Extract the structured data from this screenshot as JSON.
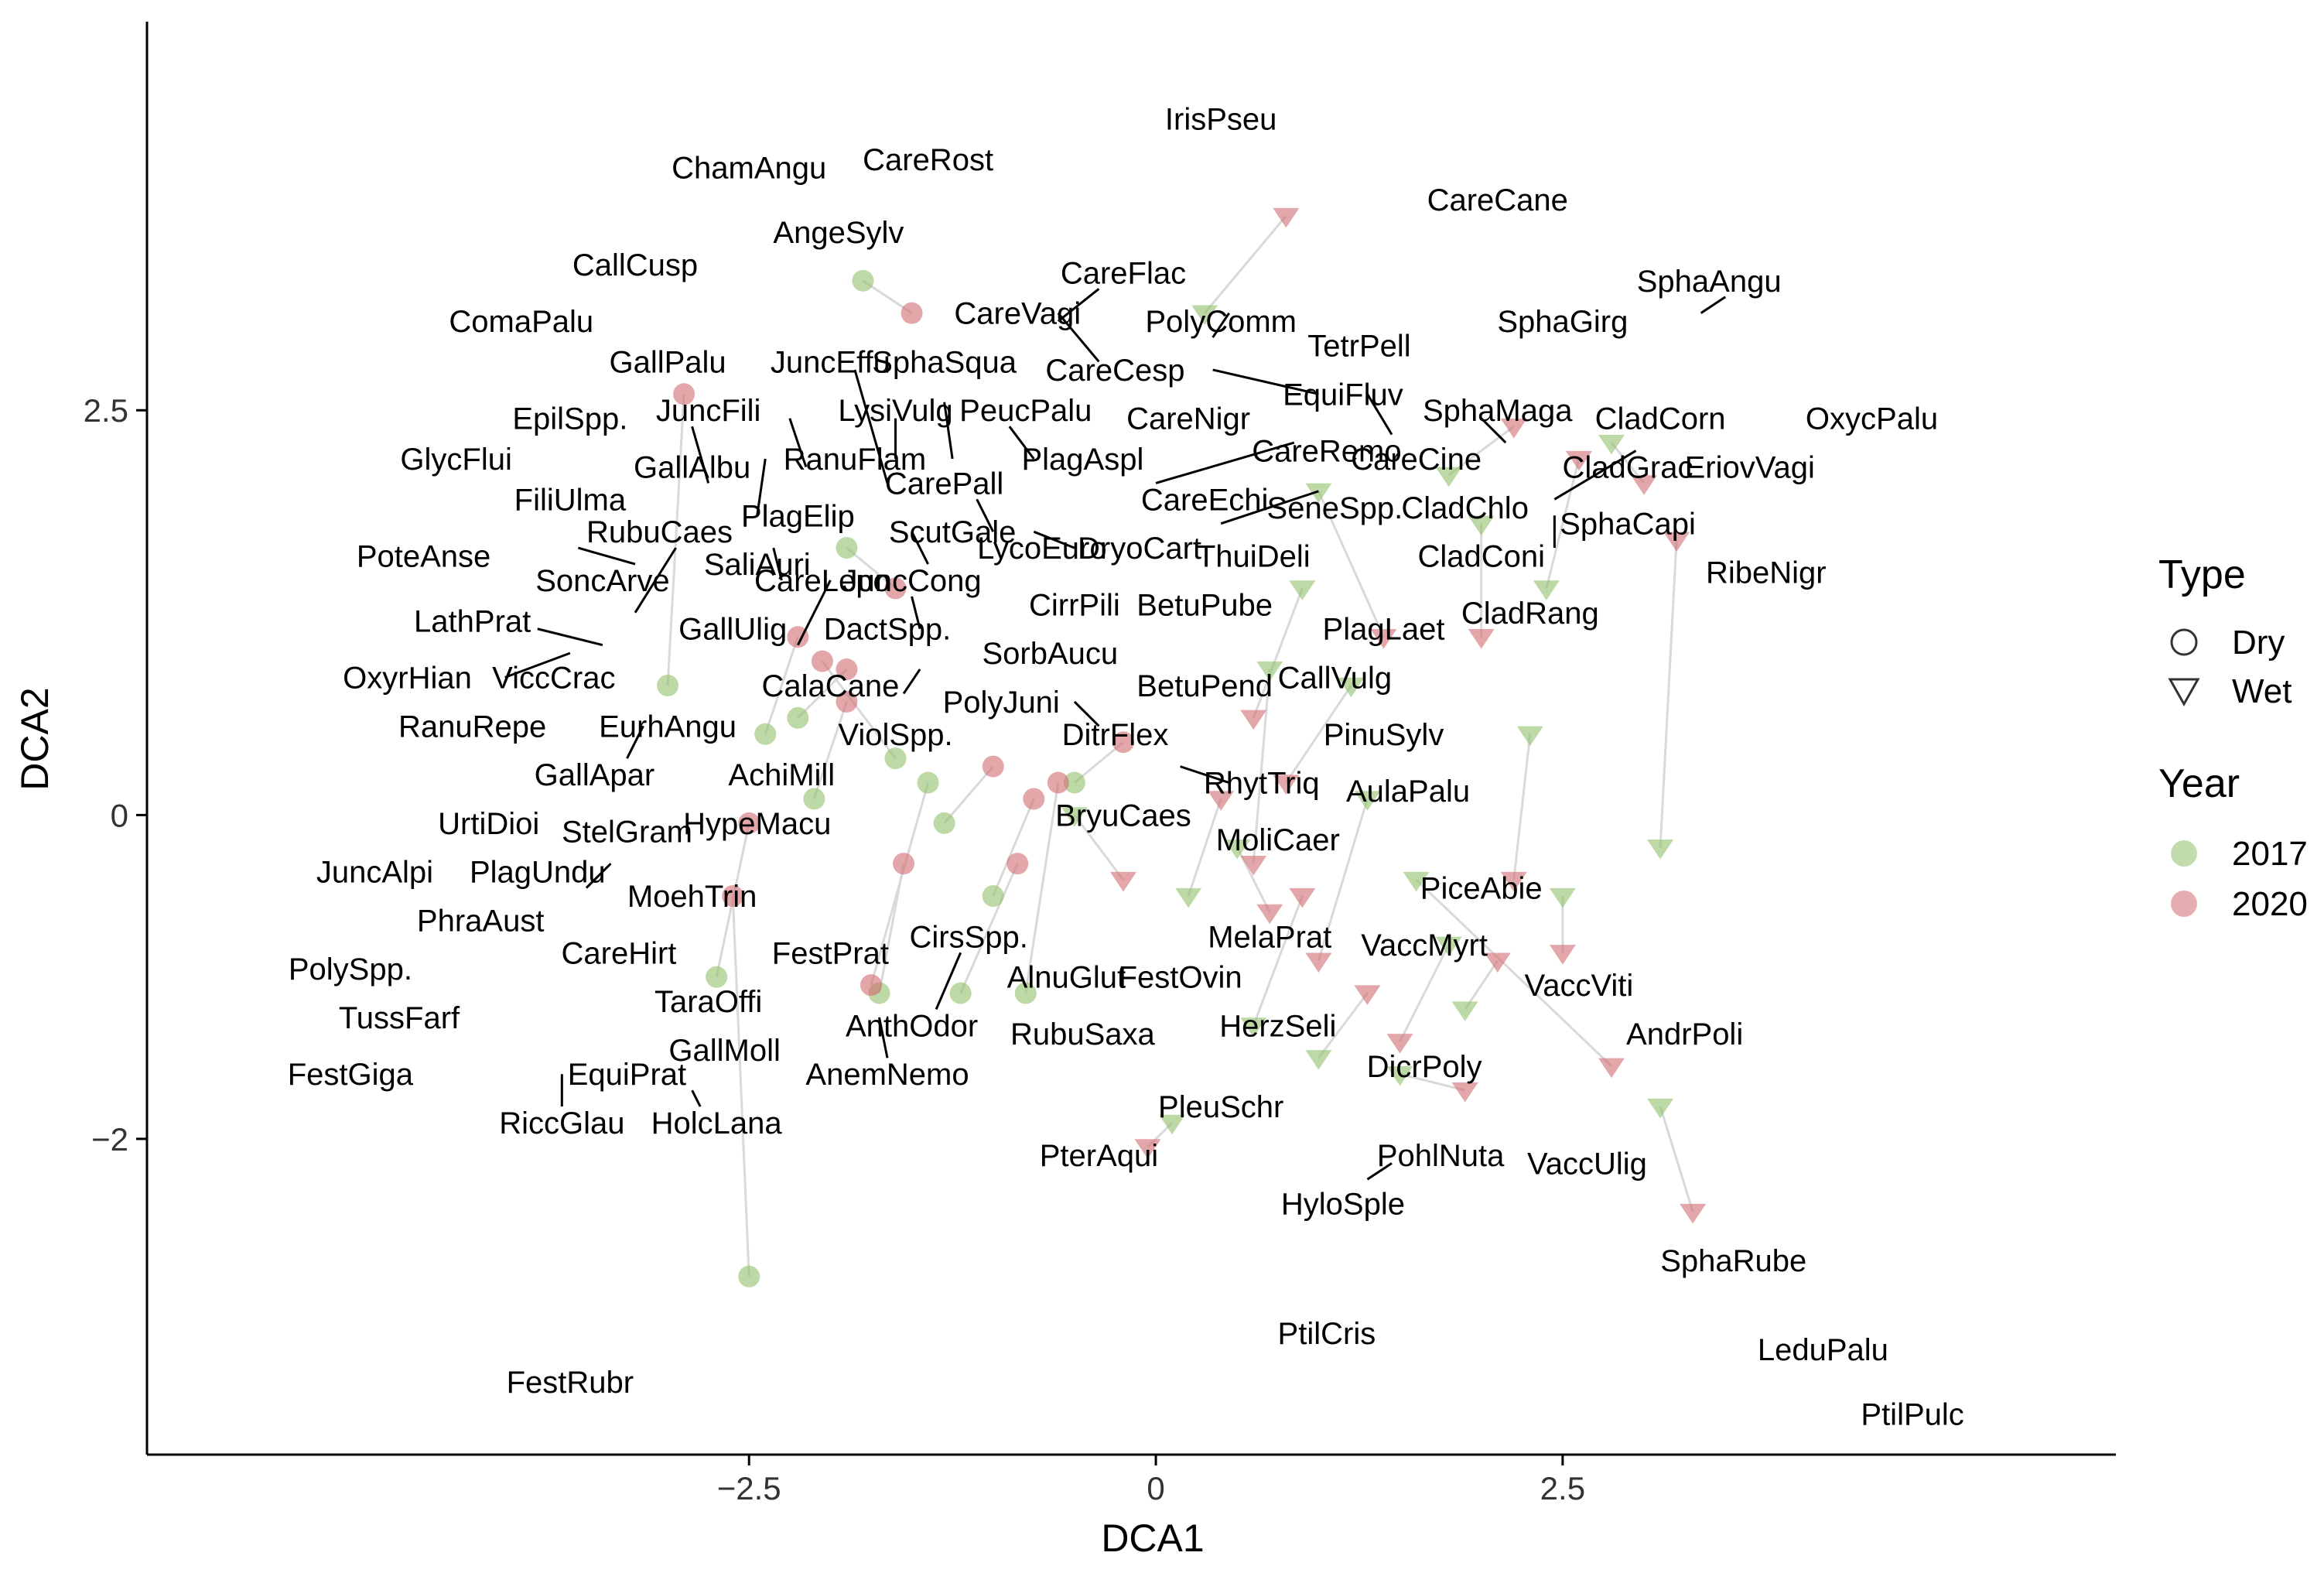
{
  "chart_data": {
    "type": "scatter",
    "xlabel": "DCA1",
    "ylabel": "DCA2",
    "xlim": [
      -6.2,
      5.9
    ],
    "ylim": [
      -3.95,
      4.9
    ],
    "x_ticks": [
      -2.5,
      0,
      2.5
    ],
    "x_tick_labels": [
      "−2.5",
      "0",
      "2.5"
    ],
    "y_ticks": [
      -2,
      0,
      2.5
    ],
    "y_tick_labels": [
      "−2",
      "0",
      "2.5"
    ],
    "grid": false,
    "legend": {
      "placement": "right",
      "type_title": "Type",
      "types": [
        {
          "label": "Dry",
          "shape": "circle"
        },
        {
          "label": "Wet",
          "shape": "triangle-down"
        }
      ],
      "year_title": "Year",
      "years": [
        {
          "label": "2017",
          "color": "#8fbf6a"
        },
        {
          "label": "2020",
          "color": "#d06a6f"
        }
      ]
    },
    "colors": {
      "y2017": "#8fbf6a",
      "y2020": "#d06a6f",
      "connector": "#d9d9d9"
    },
    "sites": [
      {
        "type": "Dry",
        "x2017": -1.8,
        "y2017": 3.3,
        "x2020": -1.5,
        "y2020": 3.1
      },
      {
        "type": "Dry",
        "x2017": -3.0,
        "y2017": 0.8,
        "x2020": -2.9,
        "y2020": 2.6
      },
      {
        "type": "Dry",
        "x2017": -2.5,
        "y2017": -2.85,
        "x2020": -2.6,
        "y2020": -0.5
      },
      {
        "type": "Dry",
        "x2017": -2.4,
        "y2017": 0.5,
        "x2020": -2.2,
        "y2020": 1.1
      },
      {
        "type": "Dry",
        "x2017": -2.1,
        "y2017": 0.1,
        "x2020": -1.9,
        "y2020": 0.7
      },
      {
        "type": "Dry",
        "x2017": -1.7,
        "y2017": -1.1,
        "x2020": -1.55,
        "y2020": -0.3
      },
      {
        "type": "Dry",
        "x2017": -1.3,
        "y2017": -0.05,
        "x2020": -1.0,
        "y2020": 0.3
      },
      {
        "type": "Dry",
        "x2017": -1.6,
        "y2017": 0.35,
        "x2020": -2.05,
        "y2020": 0.95
      },
      {
        "type": "Dry",
        "x2017": -1.2,
        "y2017": -1.1,
        "x2020": -0.85,
        "y2020": -0.3
      },
      {
        "type": "Dry",
        "x2017": -1.9,
        "y2017": 1.65,
        "x2020": -1.6,
        "y2020": 1.4
      },
      {
        "type": "Dry",
        "x2017": -2.7,
        "y2017": -1.0,
        "x2020": -2.5,
        "y2020": -0.05
      },
      {
        "type": "Dry",
        "x2017": -0.5,
        "y2017": 0.2,
        "x2020": -0.2,
        "y2020": 0.45
      },
      {
        "type": "Dry",
        "x2017": -1.4,
        "y2017": 0.2,
        "x2020": -1.75,
        "y2020": -1.05
      },
      {
        "type": "Dry",
        "x2017": -1.0,
        "y2017": -0.5,
        "x2020": -0.75,
        "y2020": 0.1
      },
      {
        "type": "Dry",
        "x2017": -2.2,
        "y2017": 0.6,
        "x2020": -1.9,
        "y2020": 0.9
      },
      {
        "type": "Dry",
        "x2017": -0.8,
        "y2017": -1.1,
        "x2020": -0.6,
        "y2020": 0.2
      },
      {
        "type": "Wet",
        "x2017": 0.3,
        "y2017": 3.1,
        "x2020": 0.8,
        "y2020": 3.7
      },
      {
        "type": "Wet",
        "x2017": 1.8,
        "y2017": 2.1,
        "x2020": 2.2,
        "y2020": 2.4
      },
      {
        "type": "Wet",
        "x2017": 3.1,
        "y2017": -0.2,
        "x2020": 3.2,
        "y2020": 1.7
      },
      {
        "type": "Wet",
        "x2017": 3.1,
        "y2017": -1.8,
        "x2020": 3.3,
        "y2020": -2.45
      },
      {
        "type": "Wet",
        "x2017": 2.0,
        "y2017": 1.8,
        "x2020": 2.0,
        "y2020": 1.1
      },
      {
        "type": "Wet",
        "x2017": 2.5,
        "y2017": -0.5,
        "x2020": 2.5,
        "y2020": -0.85
      },
      {
        "type": "Wet",
        "x2017": 1.6,
        "y2017": -0.4,
        "x2020": 2.8,
        "y2020": -1.55
      },
      {
        "type": "Wet",
        "x2017": 0.6,
        "y2017": -1.3,
        "x2020": 0.9,
        "y2020": -0.5
      },
      {
        "type": "Wet",
        "x2017": 1.2,
        "y2017": 0.8,
        "x2020": 0.8,
        "y2020": 0.2
      },
      {
        "type": "Wet",
        "x2017": 0.1,
        "y2017": -1.9,
        "x2020": -0.05,
        "y2020": -2.05
      },
      {
        "type": "Wet",
        "x2017": 1.0,
        "y2017": 2.0,
        "x2020": 1.4,
        "y2020": 1.1
      },
      {
        "type": "Wet",
        "x2017": 0.5,
        "y2017": -0.2,
        "x2020": 0.7,
        "y2020": -0.6
      },
      {
        "type": "Wet",
        "x2017": 1.8,
        "y2017": -0.8,
        "x2020": 1.5,
        "y2020": -1.4
      },
      {
        "type": "Wet",
        "x2017": 2.3,
        "y2017": 0.5,
        "x2020": 2.2,
        "y2020": -0.4
      },
      {
        "type": "Wet",
        "x2017": 1.3,
        "y2017": 0.1,
        "x2020": 1.0,
        "y2020": -0.9
      },
      {
        "type": "Wet",
        "x2017": 0.9,
        "y2017": 1.4,
        "x2020": 0.6,
        "y2020": 0.6
      },
      {
        "type": "Wet",
        "x2017": 2.8,
        "y2017": 2.3,
        "x2020": 3.0,
        "y2020": 2.05
      },
      {
        "type": "Wet",
        "x2017": 0.2,
        "y2017": -0.5,
        "x2020": 0.4,
        "y2020": 0.1
      },
      {
        "type": "Wet",
        "x2017": 1.5,
        "y2017": -1.6,
        "x2020": 1.9,
        "y2020": -1.7
      },
      {
        "type": "Wet",
        "x2017": 2.4,
        "y2017": 1.4,
        "x2020": 2.6,
        "y2020": 2.2
      },
      {
        "type": "Wet",
        "x2017": 1.0,
        "y2017": -1.5,
        "x2020": 1.3,
        "y2020": -1.1
      },
      {
        "type": "Wet",
        "x2017": 0.7,
        "y2017": 0.9,
        "x2020": 0.6,
        "y2020": -0.3
      },
      {
        "type": "Wet",
        "x2017": 1.9,
        "y2017": -1.2,
        "x2020": 2.1,
        "y2020": -0.9
      },
      {
        "type": "Wet",
        "x2017": -0.5,
        "y2017": 0.0,
        "x2020": -0.2,
        "y2020": -0.4
      }
    ],
    "species": [
      {
        "label": "IrisPseu",
        "x": 0.4,
        "y": 4.3
      },
      {
        "label": "CareRost",
        "x": -1.4,
        "y": 4.05
      },
      {
        "label": "ChamAngu",
        "x": -2.5,
        "y": 4.0
      },
      {
        "label": "CareCane",
        "x": 2.1,
        "y": 3.8
      },
      {
        "label": "AngeSylv",
        "x": -1.95,
        "y": 3.6
      },
      {
        "label": "CallCusp",
        "x": -3.2,
        "y": 3.4
      },
      {
        "label": "CareFlac",
        "x": -0.2,
        "y": 3.35
      },
      {
        "label": "SphaAngu",
        "x": 3.4,
        "y": 3.3
      },
      {
        "label": "CareVagi",
        "x": -0.85,
        "y": 3.1
      },
      {
        "label": "ComaPalu",
        "x": -3.9,
        "y": 3.05
      },
      {
        "label": "PolyComm",
        "x": 0.4,
        "y": 3.05
      },
      {
        "label": "SphaGirg",
        "x": 2.5,
        "y": 3.05
      },
      {
        "label": "TetrPell",
        "x": 1.25,
        "y": 2.9
      },
      {
        "label": "GallPalu",
        "x": -3.0,
        "y": 2.8
      },
      {
        "label": "JuncEffu",
        "x": -2.0,
        "y": 2.8
      },
      {
        "label": "SphaSqua",
        "x": -1.3,
        "y": 2.8
      },
      {
        "label": "CareCesp",
        "x": -0.25,
        "y": 2.75
      },
      {
        "label": "EquiFluv",
        "x": 1.15,
        "y": 2.6
      },
      {
        "label": "JuncFili",
        "x": -2.75,
        "y": 2.5
      },
      {
        "label": "EpilSpp.",
        "x": -3.6,
        "y": 2.45
      },
      {
        "label": "LysiVulg",
        "x": -1.6,
        "y": 2.5
      },
      {
        "label": "PeucPalu",
        "x": -0.8,
        "y": 2.5
      },
      {
        "label": "CareNigr",
        "x": 0.2,
        "y": 2.45
      },
      {
        "label": "SphaMaga",
        "x": 2.1,
        "y": 2.5
      },
      {
        "label": "CladCorn",
        "x": 3.1,
        "y": 2.45
      },
      {
        "label": "OxycPalu",
        "x": 4.4,
        "y": 2.45
      },
      {
        "label": "GlycFlui",
        "x": -4.3,
        "y": 2.2
      },
      {
        "label": "GallAlbu",
        "x": -2.85,
        "y": 2.15
      },
      {
        "label": "RanuFlam",
        "x": -1.85,
        "y": 2.2
      },
      {
        "label": "PlagAspl",
        "x": -0.45,
        "y": 2.2
      },
      {
        "label": "CareRemo",
        "x": 1.05,
        "y": 2.25
      },
      {
        "label": "CareCine",
        "x": 1.6,
        "y": 2.2
      },
      {
        "label": "CladGrac",
        "x": 2.9,
        "y": 2.15
      },
      {
        "label": "EriovVagi",
        "x": 3.65,
        "y": 2.15
      },
      {
        "label": "FiliUlma",
        "x": -3.6,
        "y": 1.95
      },
      {
        "label": "CarePall",
        "x": -1.3,
        "y": 2.05
      },
      {
        "label": "CareEchi",
        "x": 0.3,
        "y": 1.95
      },
      {
        "label": "SeneSpp.",
        "x": 1.1,
        "y": 1.9
      },
      {
        "label": "CladChlo",
        "x": 1.9,
        "y": 1.9
      },
      {
        "label": "PlagElip",
        "x": -2.2,
        "y": 1.85
      },
      {
        "label": "SphaCapi",
        "x": 2.9,
        "y": 1.8
      },
      {
        "label": "RubuCaes",
        "x": -3.05,
        "y": 1.75
      },
      {
        "label": "ScutGale",
        "x": -1.25,
        "y": 1.75
      },
      {
        "label": "PoteAnse",
        "x": -4.5,
        "y": 1.6
      },
      {
        "label": "SaliAuri",
        "x": -2.45,
        "y": 1.55
      },
      {
        "label": "LycoEuro",
        "x": -0.7,
        "y": 1.65
      },
      {
        "label": "DryoCart",
        "x": -0.1,
        "y": 1.65
      },
      {
        "label": "ThuiDeli",
        "x": 0.6,
        "y": 1.6
      },
      {
        "label": "CladConi",
        "x": 2.0,
        "y": 1.6
      },
      {
        "label": "RibeNigr",
        "x": 3.75,
        "y": 1.5
      },
      {
        "label": "SoncArve",
        "x": -3.4,
        "y": 1.45
      },
      {
        "label": "CareLepo",
        "x": -2.05,
        "y": 1.45
      },
      {
        "label": "JuncCong",
        "x": -1.5,
        "y": 1.45
      },
      {
        "label": "CirrPili",
        "x": -0.5,
        "y": 1.3
      },
      {
        "label": "BetuPube",
        "x": 0.3,
        "y": 1.3
      },
      {
        "label": "CladRang",
        "x": 2.3,
        "y": 1.25
      },
      {
        "label": "LathPrat",
        "x": -4.2,
        "y": 1.2
      },
      {
        "label": "GallUlig",
        "x": -2.6,
        "y": 1.15
      },
      {
        "label": "DactSpp.",
        "x": -1.65,
        "y": 1.15
      },
      {
        "label": "PlagLaet",
        "x": 1.4,
        "y": 1.15
      },
      {
        "label": "SorbAucu",
        "x": -0.65,
        "y": 1.0
      },
      {
        "label": "OxyrHian",
        "x": -4.6,
        "y": 0.85
      },
      {
        "label": "ViccCrac",
        "x": -3.7,
        "y": 0.85
      },
      {
        "label": "CalaCane",
        "x": -2.0,
        "y": 0.8
      },
      {
        "label": "BetuPend",
        "x": 0.3,
        "y": 0.8
      },
      {
        "label": "CallVulg",
        "x": 1.1,
        "y": 0.85
      },
      {
        "label": "PolyJuni",
        "x": -0.95,
        "y": 0.7
      },
      {
        "label": "RanuRepe",
        "x": -4.2,
        "y": 0.55
      },
      {
        "label": "EurhAngu",
        "x": -3.0,
        "y": 0.55
      },
      {
        "label": "ViolSpp.",
        "x": -1.6,
        "y": 0.5
      },
      {
        "label": "DitrFlex",
        "x": -0.25,
        "y": 0.5
      },
      {
        "label": "PinuSylv",
        "x": 1.4,
        "y": 0.5
      },
      {
        "label": "GallApar",
        "x": -3.45,
        "y": 0.25
      },
      {
        "label": "AchiMill",
        "x": -2.3,
        "y": 0.25
      },
      {
        "label": "RhytTriq",
        "x": 0.65,
        "y": 0.2
      },
      {
        "label": "AulaPalu",
        "x": 1.55,
        "y": 0.15
      },
      {
        "label": "UrtiDioi",
        "x": -4.1,
        "y": -0.05
      },
      {
        "label": "StelGram",
        "x": -3.25,
        "y": -0.1
      },
      {
        "label": "HypeMacu",
        "x": -2.45,
        "y": -0.05
      },
      {
        "label": "BryuCaes",
        "x": -0.2,
        "y": 0.0
      },
      {
        "label": "MoliCaer",
        "x": 0.75,
        "y": -0.15
      },
      {
        "label": "JuncAlpi",
        "x": -4.8,
        "y": -0.35
      },
      {
        "label": "PlagUndu",
        "x": -3.8,
        "y": -0.35
      },
      {
        "label": "PiceAbie",
        "x": 2.0,
        "y": -0.45
      },
      {
        "label": "PhraAust",
        "x": -4.15,
        "y": -0.65
      },
      {
        "label": "MoehTrin",
        "x": -2.85,
        "y": -0.5
      },
      {
        "label": "CirsSpp.",
        "x": -1.15,
        "y": -0.75
      },
      {
        "label": "CareHirt",
        "x": -3.3,
        "y": -0.85
      },
      {
        "label": "FestPrat",
        "x": -2.0,
        "y": -0.85
      },
      {
        "label": "MelaPrat",
        "x": 0.7,
        "y": -0.75
      },
      {
        "label": "VaccMyrt",
        "x": 1.65,
        "y": -0.8
      },
      {
        "label": "PolySpp.",
        "x": -4.95,
        "y": -0.95
      },
      {
        "label": "AlnuGlut",
        "x": -0.55,
        "y": -1.0
      },
      {
        "label": "FestOvin",
        "x": 0.15,
        "y": -1.0
      },
      {
        "label": "VaccViti",
        "x": 2.6,
        "y": -1.05
      },
      {
        "label": "TaraOffi",
        "x": -2.75,
        "y": -1.15
      },
      {
        "label": "TussFarf",
        "x": -4.65,
        "y": -1.25
      },
      {
        "label": "AnthOdor",
        "x": -1.5,
        "y": -1.3
      },
      {
        "label": "RubuSaxa",
        "x": -0.45,
        "y": -1.35
      },
      {
        "label": "HerzSeli",
        "x": 0.75,
        "y": -1.3
      },
      {
        "label": "AndrPoli",
        "x": 3.25,
        "y": -1.35
      },
      {
        "label": "GallMoll",
        "x": -2.65,
        "y": -1.45
      },
      {
        "label": "FestGiga",
        "x": -4.95,
        "y": -1.6
      },
      {
        "label": "EquiPrat",
        "x": -3.25,
        "y": -1.6
      },
      {
        "label": "AnemNemo",
        "x": -1.65,
        "y": -1.6
      },
      {
        "label": "DicrPoly",
        "x": 1.65,
        "y": -1.55
      },
      {
        "label": "RiccGlau",
        "x": -3.65,
        "y": -1.9
      },
      {
        "label": "HolcLana",
        "x": -2.7,
        "y": -1.9
      },
      {
        "label": "PleuSchr",
        "x": 0.4,
        "y": -1.8
      },
      {
        "label": "PterAqui",
        "x": -0.35,
        "y": -2.1
      },
      {
        "label": "PohlNuta",
        "x": 1.75,
        "y": -2.1
      },
      {
        "label": "VaccUlig",
        "x": 2.65,
        "y": -2.15
      },
      {
        "label": "HyloSple",
        "x": 1.15,
        "y": -2.4
      },
      {
        "label": "SphaRube",
        "x": 3.55,
        "y": -2.75
      },
      {
        "label": "PtilCris",
        "x": 1.05,
        "y": -3.2
      },
      {
        "label": "LeduPalu",
        "x": 4.1,
        "y": -3.3
      },
      {
        "label": "FestRubr",
        "x": -3.6,
        "y": -3.5
      },
      {
        "label": "PtilPulc",
        "x": 4.65,
        "y": -3.7
      }
    ],
    "leaders": [
      [
        -0.6,
        3.1,
        -0.35,
        2.8
      ],
      [
        -0.6,
        3.05,
        -0.35,
        3.25
      ],
      [
        0.35,
        2.95,
        0.45,
        3.1
      ],
      [
        0.35,
        2.75,
        1.0,
        2.6
      ],
      [
        1.3,
        2.6,
        1.45,
        2.35
      ],
      [
        2.0,
        2.45,
        2.15,
        2.3
      ],
      [
        3.5,
        3.2,
        3.35,
        3.1
      ],
      [
        -2.85,
        2.4,
        -2.75,
        2.05
      ],
      [
        -2.4,
        2.2,
        -2.45,
        1.85
      ],
      [
        -2.25,
        2.45,
        -2.15,
        2.15
      ],
      [
        -1.85,
        2.75,
        -1.65,
        2.05
      ],
      [
        -1.6,
        2.45,
        -1.6,
        2.2
      ],
      [
        -1.3,
        2.55,
        -1.25,
        2.2
      ],
      [
        -0.9,
        2.4,
        -0.75,
        2.2
      ],
      [
        0.0,
        2.05,
        0.85,
        2.3
      ],
      [
        0.4,
        1.8,
        1.0,
        2.0
      ],
      [
        -1.1,
        1.95,
        -1.0,
        1.75
      ],
      [
        -0.75,
        1.75,
        -0.5,
        1.65
      ],
      [
        -3.55,
        1.65,
        -3.2,
        1.55
      ],
      [
        -3.2,
        1.25,
        -2.95,
        1.65
      ],
      [
        -2.35,
        1.65,
        -2.3,
        1.45
      ],
      [
        -1.4,
        1.55,
        -1.5,
        1.75
      ],
      [
        -1.5,
        1.35,
        -1.45,
        1.15
      ],
      [
        -3.8,
        1.15,
        -3.4,
        1.05
      ],
      [
        -4.0,
        0.85,
        -3.6,
        1.0
      ],
      [
        -2.2,
        1.05,
        -2.0,
        1.45
      ],
      [
        -1.55,
        0.75,
        -1.45,
        0.9
      ],
      [
        -3.25,
        0.35,
        -3.15,
        0.55
      ],
      [
        -0.5,
        0.7,
        -0.35,
        0.55
      ],
      [
        0.15,
        0.3,
        0.45,
        0.2
      ],
      [
        -3.5,
        -0.45,
        -3.35,
        -0.3
      ],
      [
        -1.2,
        -0.85,
        -1.35,
        -1.2
      ],
      [
        -1.7,
        -1.25,
        -1.65,
        -1.5
      ],
      [
        -3.65,
        -1.6,
        -3.65,
        -1.8
      ],
      [
        -2.85,
        -1.7,
        -2.8,
        -1.8
      ],
      [
        1.3,
        -2.25,
        1.45,
        -2.15
      ],
      [
        2.95,
        2.25,
        2.45,
        1.95
      ],
      [
        2.45,
        1.85,
        2.45,
        1.65
      ]
    ]
  }
}
